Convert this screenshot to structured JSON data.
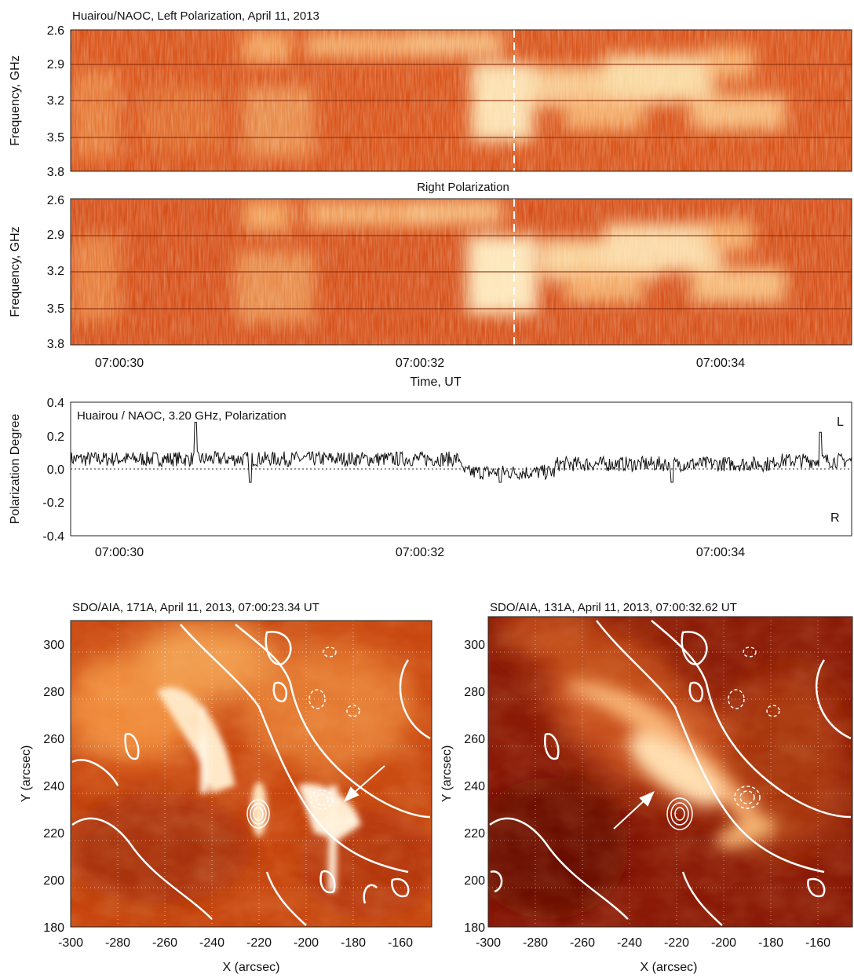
{
  "spectrogram_top": {
    "title": "Huairou/NAOC, Left Polarization, April 11, 2013",
    "ylabel": "Frequency, GHz"
  },
  "spectrogram_bottom": {
    "title": "Right Polarization",
    "ylabel": "Frequency, GHz",
    "xlabel": "Time, UT"
  },
  "polarization_panel": {
    "title": "Huairou / NAOC, 3.20 GHz, Polarization",
    "ylabel": "Polarization Degree",
    "label_L": "L",
    "label_R": "R"
  },
  "aia_left": {
    "title": "SDO/AIA, 171A, April 11, 2013, 07:00:23.34 UT",
    "xlabel": "X (arcsec)",
    "ylabel": "Y (arcsec)"
  },
  "aia_right": {
    "title": "SDO/AIA, 131A, April 11, 2013, 07:00:32.62 UT",
    "xlabel": "X (arcsec)",
    "ylabel": "Y (arcsec)"
  },
  "colors": {
    "spectrogram_base": "#d9531a",
    "spectrogram_bright": "#fff4d6",
    "aia171_base": "#c8460f",
    "aia131_base": "#8a1a06",
    "contour": "#ffffff"
  },
  "chart_data": [
    {
      "type": "heatmap",
      "panel": "left-polarization-spectrogram",
      "ylim": [
        2.6,
        3.8
      ],
      "y_ticks": [
        "2.6",
        "2.9",
        "3.2",
        "3.5",
        "3.8"
      ],
      "x_ticks": [
        "07:00:30",
        "07:00:32",
        "07:00:34"
      ],
      "marker_time": "07:00:32.62"
    },
    {
      "type": "heatmap",
      "panel": "right-polarization-spectrogram",
      "ylim": [
        2.6,
        3.8
      ],
      "y_ticks": [
        "2.6",
        "2.9",
        "3.2",
        "3.5",
        "3.8"
      ],
      "x_ticks": [
        "07:00:30",
        "07:00:32",
        "07:00:34"
      ],
      "marker_time": "07:00:32.62"
    },
    {
      "type": "line",
      "panel": "polarization-degree",
      "ylim": [
        -0.4,
        0.4
      ],
      "y_ticks": [
        "0.4",
        "0.2",
        "0.0",
        "-0.2",
        "-0.4"
      ],
      "x_ticks": [
        "07:00:30",
        "07:00:32",
        "07:00:34"
      ],
      "segments": [
        {
          "t0": 0.0,
          "t1": 0.2,
          "mean": 0.06
        },
        {
          "t0": 0.2,
          "t1": 0.5,
          "mean": 0.06
        },
        {
          "t0": 0.5,
          "t1": 0.62,
          "mean": -0.02
        },
        {
          "t0": 0.62,
          "t1": 0.9,
          "mean": 0.03
        },
        {
          "t0": 0.9,
          "t1": 1.0,
          "mean": 0.05
        }
      ],
      "spikes": [
        {
          "t": 0.16,
          "v": 0.28
        },
        {
          "t": 0.23,
          "v": -0.08
        },
        {
          "t": 0.55,
          "v": -0.08
        },
        {
          "t": 0.77,
          "v": -0.08
        },
        {
          "t": 0.96,
          "v": 0.22
        }
      ]
    },
    {
      "type": "heatmap",
      "panel": "aia-171",
      "xlim": [
        -300,
        -150
      ],
      "ylim": [
        180,
        310
      ],
      "x_ticks": [
        "-300",
        "-280",
        "-260",
        "-240",
        "-220",
        "-200",
        "-180",
        "-160"
      ],
      "y_ticks": [
        "180",
        "200",
        "220",
        "240",
        "260",
        "280",
        "300"
      ]
    },
    {
      "type": "heatmap",
      "panel": "aia-131",
      "xlim": [
        -300,
        -150
      ],
      "ylim": [
        180,
        310
      ],
      "x_ticks": [
        "-300",
        "-280",
        "-260",
        "-240",
        "-220",
        "-200",
        "-180",
        "-160"
      ],
      "y_ticks": [
        "180",
        "200",
        "220",
        "240",
        "260",
        "280",
        "300"
      ]
    }
  ]
}
